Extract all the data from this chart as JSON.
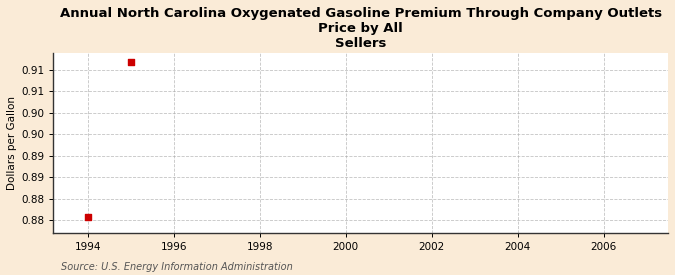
{
  "title": "Annual North Carolina Oxygenated Gasoline Premium Through Company Outlets Price by All Sellers",
  "ylabel": "Dollars per Gallon",
  "source": "Source: U.S. Energy Information Administration",
  "background_color": "#faebd7",
  "plot_bg_color": "#ffffff",
  "data_x": [
    1994,
    1995
  ],
  "data_y": [
    0.8807,
    0.9126
  ],
  "marker_color": "#cc0000",
  "marker_size": 4,
  "xlim": [
    1993.2,
    2007.5
  ],
  "ylim": [
    0.8775,
    0.9145
  ],
  "xticks": [
    1994,
    1996,
    1998,
    2000,
    2002,
    2004,
    2006
  ],
  "ytick_vals": [
    0.88,
    0.8844,
    0.8889,
    0.8933,
    0.8978,
    0.9022,
    0.9067,
    0.9111
  ],
  "ytick_labels": [
    "0.88",
    "0.88",
    "0.89",
    "0.89",
    "0.90",
    "0.90",
    "0.91",
    "0.91"
  ],
  "grid_color": "#aaaaaa",
  "grid_style": "--",
  "title_fontsize": 9.5,
  "label_fontsize": 7.5,
  "tick_fontsize": 7.5,
  "source_fontsize": 7
}
